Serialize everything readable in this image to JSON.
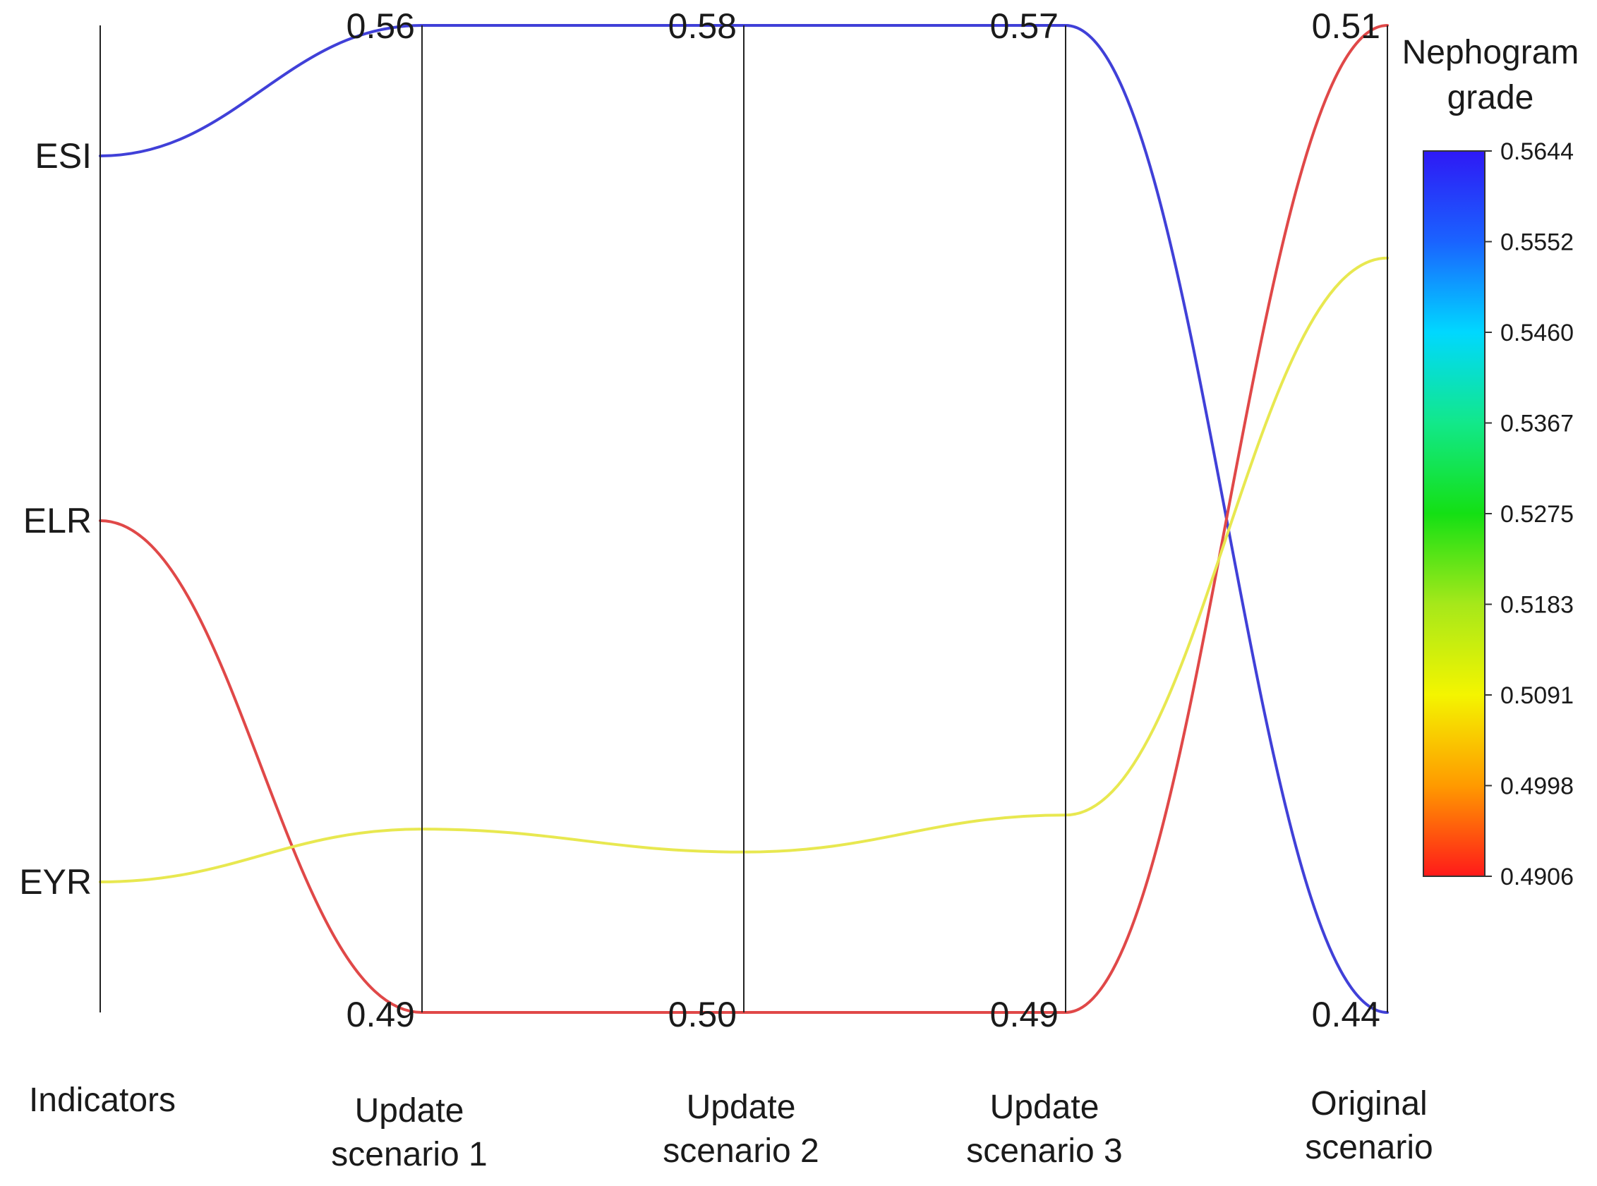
{
  "chart_data": {
    "type": "parallel-coordinates",
    "axes": [
      {
        "name": "Indicators",
        "label_lines": [
          "Indicators"
        ],
        "top_label": "",
        "bottom_label": ""
      },
      {
        "name": "Update scenario 1",
        "label_lines": [
          "Update",
          "scenario 1"
        ],
        "top_label": "0.56",
        "bottom_label": "0.49",
        "range": [
          0.49,
          0.56
        ]
      },
      {
        "name": "Update scenario 2",
        "label_lines": [
          "Update",
          "scenario 2"
        ],
        "top_label": "0.58",
        "bottom_label": "0.50",
        "range": [
          0.5,
          0.58
        ]
      },
      {
        "name": "Update scenario 3",
        "label_lines": [
          "Update",
          "scenario 3"
        ],
        "top_label": "0.57",
        "bottom_label": "0.49",
        "range": [
          0.49,
          0.57
        ]
      },
      {
        "name": "Original scenario",
        "label_lines": [
          "Original",
          "scenario"
        ],
        "top_label": "0.51",
        "bottom_label": "0.44",
        "range": [
          0.44,
          0.51
        ]
      }
    ],
    "indicator_ticks": [
      "ESI",
      "ELR",
      "EYR"
    ],
    "series": [
      {
        "name": "ESI",
        "color": "#4040d8",
        "values": [
          0.56,
          0.58,
          0.57,
          0.44
        ]
      },
      {
        "name": "ELR",
        "color": "#e04848",
        "values": [
          0.49,
          0.5,
          0.49,
          0.51
        ]
      },
      {
        "name": "EYR",
        "color": "#e8e850",
        "values": [
          0.503,
          0.513,
          0.506,
          0.4935
        ]
      }
    ],
    "colorbar": {
      "title_lines": [
        "Nephogram",
        "grade"
      ],
      "ticks": [
        "0.5644",
        "0.5552",
        "0.5460",
        "0.5367",
        "0.5275",
        "0.5183",
        "0.5091",
        "0.4998",
        "0.4906"
      ],
      "range": [
        0.4906,
        0.5644
      ],
      "colors": [
        "#2e19f5",
        "#1a63ff",
        "#00d8ff",
        "#12e88a",
        "#14e014",
        "#a6e81a",
        "#f4f500",
        "#ff9a00",
        "#ff1a1a"
      ]
    }
  }
}
